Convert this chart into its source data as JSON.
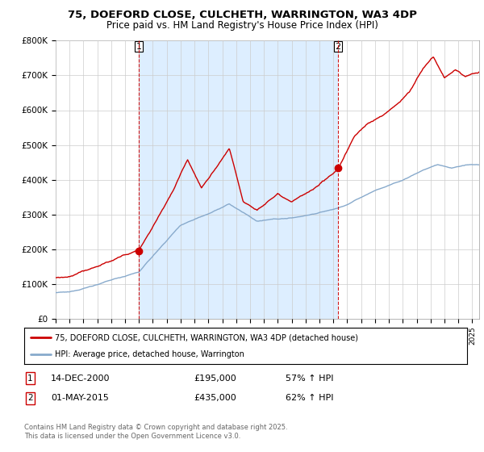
{
  "title_line1": "75, DOEFORD CLOSE, CULCHETH, WARRINGTON, WA3 4DP",
  "title_line2": "Price paid vs. HM Land Registry's House Price Index (HPI)",
  "legend_line1": "75, DOEFORD CLOSE, CULCHETH, WARRINGTON, WA3 4DP (detached house)",
  "legend_line2": "HPI: Average price, detached house, Warrington",
  "transaction1_date": "14-DEC-2000",
  "transaction1_price": "£195,000",
  "transaction1_hpi": "57% ↑ HPI",
  "transaction2_date": "01-MAY-2015",
  "transaction2_price": "£435,000",
  "transaction2_hpi": "62% ↑ HPI",
  "footer": "Contains HM Land Registry data © Crown copyright and database right 2025.\nThis data is licensed under the Open Government Licence v3.0.",
  "red_color": "#cc0000",
  "blue_color": "#88aacc",
  "shade_color": "#ddeeff",
  "background": "#ffffff",
  "grid_color": "#cccccc",
  "ylim_min": 0,
  "ylim_max": 800000,
  "yticks": [
    0,
    100000,
    200000,
    300000,
    400000,
    500000,
    600000,
    700000,
    800000
  ],
  "ytick_labels": [
    "£0",
    "£100K",
    "£200K",
    "£300K",
    "£400K",
    "£500K",
    "£600K",
    "£700K",
    "£800K"
  ],
  "transaction1_x": 2001.0,
  "transaction2_x": 2015.33,
  "transaction1_y": 195000,
  "transaction2_y": 435000,
  "vline1_x": 2001.0,
  "vline2_x": 2015.33,
  "xlim_min": 1995,
  "xlim_max": 2025.5
}
